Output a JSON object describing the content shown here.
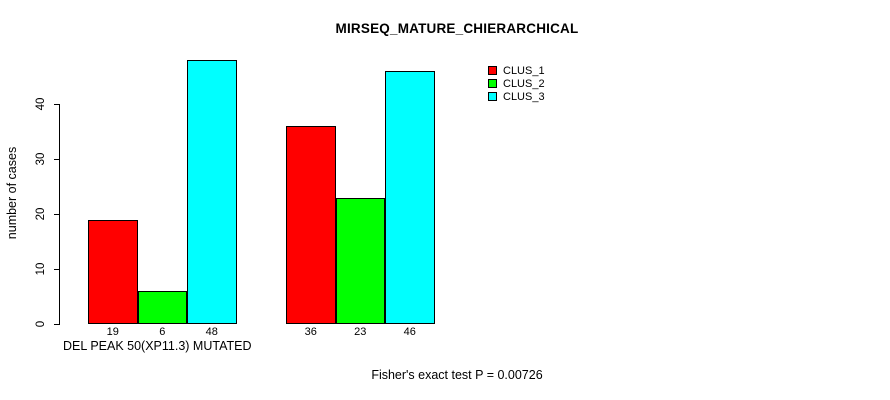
{
  "chart_data": {
    "type": "bar",
    "title": "MIRSEQ_MATURE_CHIERARCHICAL",
    "ylabel": "number of cases",
    "xlabel": "DEL PEAK 50(XP11.3) MUTATED",
    "annotation": "Fisher's exact test P = 0.00726",
    "ylim": [
      0,
      48
    ],
    "yticks": [
      0,
      10,
      20,
      30,
      40
    ],
    "grid": false,
    "legend_position": "top-right-inside",
    "n_groups": 2,
    "series": [
      {
        "name": "CLUS_1",
        "color": "#ff0000",
        "values": [
          19,
          36
        ]
      },
      {
        "name": "CLUS_2",
        "color": "#00ff00",
        "values": [
          6,
          23
        ]
      },
      {
        "name": "CLUS_3",
        "color": "#00ffff",
        "values": [
          48,
          46
        ]
      }
    ],
    "bar_value_labels": [
      [
        "19",
        "6",
        "48"
      ],
      [
        "36",
        "23",
        "46"
      ]
    ]
  }
}
